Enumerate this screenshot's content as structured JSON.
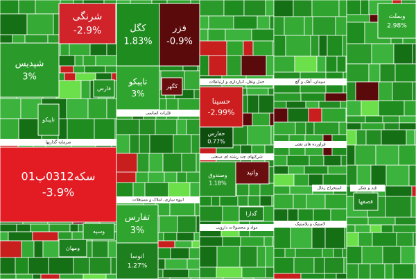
{
  "sectors": [
    {
      "title": "سرمایه گذاریها"
    },
    {
      "title": "فلزات اساسی"
    },
    {
      "title": "انبوه سازی، املاک و مستغلات"
    },
    {
      "title": "حمل ونقل، انبارداری و ارتباطات"
    },
    {
      "title": "شرکتهای چند رشته ای صنعتی"
    },
    {
      "title": "مواد و محصولات دارویی"
    },
    {
      "title": "سیمان، آهک و گچ"
    },
    {
      "title": "فراورده های نفتی"
    },
    {
      "title": "استخراج زغال"
    },
    {
      "title": "لاستیک و پلاستیک"
    },
    {
      "title": "قند و شکر"
    }
  ],
  "tiles": [
    {
      "name": "شرنگی",
      "change": "-2.9%",
      "color": "#d0232a"
    },
    {
      "name": "شپدیس",
      "change": "3%",
      "color": "#2a9a2a"
    },
    {
      "name": "تاپیکو",
      "color": "#279327"
    },
    {
      "name": "سکه0312پ01",
      "change": "-3.9%",
      "color": "#e31b23"
    },
    {
      "name": "کگل",
      "change": "1.83%",
      "color": "#1e8c1e"
    },
    {
      "name": "فزر",
      "change": "-0.9%",
      "color": "#5a0a0a"
    },
    {
      "name": "تاپیکو",
      "change": "3%",
      "color": "#2fa52f"
    },
    {
      "name": "تفارس",
      "change": "3%",
      "color": "#2fa52f"
    },
    {
      "name": "اتوسا",
      "change": "1.27%",
      "color": "#1e7f1e"
    },
    {
      "name": "حسینا",
      "change": "-2.99%",
      "color": "#cc1e1e"
    },
    {
      "name": "حفارس",
      "change": "0.77%",
      "color": "#0f4d0f"
    },
    {
      "name": "وصندوق",
      "change": "1.18%",
      "color": "#279327"
    },
    {
      "name": "واتید",
      "color": "#6a0f0f"
    },
    {
      "name": "وبملت",
      "change": "2.98%",
      "color": "#2fa52f"
    },
    {
      "name": "وسپه",
      "color": "#279327"
    },
    {
      "name": "ومهان",
      "color": "#1e7f1e"
    },
    {
      "name": "فارس",
      "color": "#279327"
    },
    {
      "name": "قصفها",
      "color": "#1e7f1e"
    },
    {
      "name": "کگهر",
      "color": "#6a0f0f"
    },
    {
      "name": "گدارا",
      "color": "#1e7f1e"
    }
  ]
}
